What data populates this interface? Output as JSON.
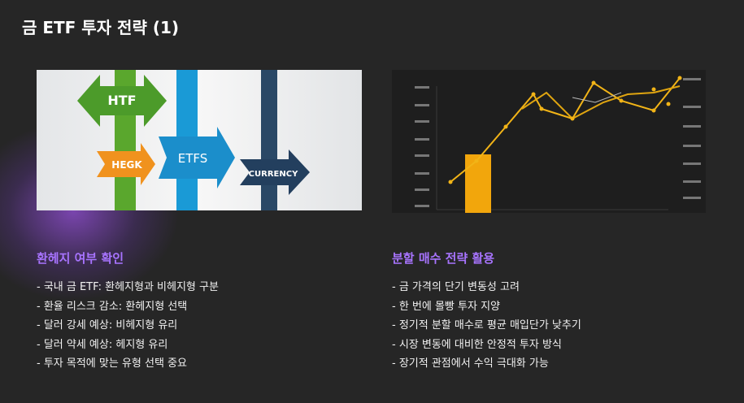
{
  "title": "금 ETF 투자 전략 (1)",
  "columns": [
    {
      "image": {
        "labels": [
          "HTF",
          "HEGK",
          "ETFS",
          "CURRENCY"
        ]
      },
      "heading": "환헤지 여부 확인",
      "items": [
        "- 국내 금 ETF: 환헤지형과 비헤지형 구분",
        "- 환율 리스크 감소: 환헤지형 선택",
        "- 달러 강세 예상: 비헤지형 유리",
        "- 달러 약세 예상: 헤지형 유리",
        "- 투자 목적에 맞는 유형 선택 중요"
      ]
    },
    {
      "heading": "분할 매수 전략 활용",
      "items": [
        "- 금 가격의 단기 변동성 고려",
        "- 한 번에 몰빵 투자 지양",
        "- 정기적 분할 매수로 평균 매입단가 낮추기",
        "- 시장 변동에 대비한 안정적 투자 방식",
        "- 장기적 관점에서 수익 극대화 가능"
      ]
    }
  ]
}
